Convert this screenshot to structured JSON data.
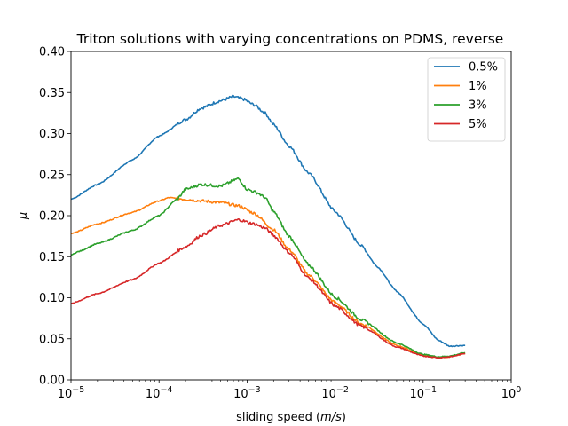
{
  "chart_data": {
    "type": "line",
    "title": "Triton solutions with varying concentrations on PDMS, reverse",
    "xlabel_prefix": "sliding speed (",
    "xlabel_unit": "m/s",
    "xlabel_suffix": ")",
    "ylabel": "μ",
    "xscale": "log",
    "xlim": [
      1e-05,
      1
    ],
    "ylim": [
      0,
      0.4
    ],
    "xticks": [
      {
        "value": 1e-05,
        "base": "10",
        "exp": "−5"
      },
      {
        "value": 0.0001,
        "base": "10",
        "exp": "−4"
      },
      {
        "value": 0.001,
        "base": "10",
        "exp": "−3"
      },
      {
        "value": 0.01,
        "base": "10",
        "exp": "−2"
      },
      {
        "value": 0.1,
        "base": "10",
        "exp": "−1"
      },
      {
        "value": 1,
        "base": "10",
        "exp": "0"
      }
    ],
    "yticks": [
      {
        "value": 0.0,
        "label": "0.00"
      },
      {
        "value": 0.05,
        "label": "0.05"
      },
      {
        "value": 0.1,
        "label": "0.10"
      },
      {
        "value": 0.15,
        "label": "0.15"
      },
      {
        "value": 0.2,
        "label": "0.20"
      },
      {
        "value": 0.25,
        "label": "0.25"
      },
      {
        "value": 0.3,
        "label": "0.30"
      },
      {
        "value": 0.35,
        "label": "0.35"
      },
      {
        "value": 0.4,
        "label": "0.40"
      }
    ],
    "grid": false,
    "legend": "top-right",
    "series": [
      {
        "name": "0.5%",
        "color": "#1f77b4",
        "x": [
          1e-05,
          2e-05,
          5e-05,
          0.0001,
          0.0002,
          0.0003,
          0.0005,
          0.0007,
          0.0009,
          0.0012,
          0.0016,
          0.002,
          0.003,
          0.005,
          0.01,
          0.02,
          0.03,
          0.05,
          0.1,
          0.15,
          0.2,
          0.3
        ],
        "y": [
          0.22,
          0.238,
          0.268,
          0.297,
          0.317,
          0.331,
          0.34,
          0.345,
          0.342,
          0.335,
          0.325,
          0.311,
          0.285,
          0.252,
          0.205,
          0.163,
          0.138,
          0.108,
          0.068,
          0.048,
          0.041,
          0.042
        ]
      },
      {
        "name": "1%",
        "color": "#ff7f0e",
        "x": [
          1e-05,
          2e-05,
          5e-05,
          0.0001,
          0.00013,
          0.00016,
          0.0002,
          0.0003,
          0.0005,
          0.0008,
          0.0012,
          0.002,
          0.003,
          0.005,
          0.01,
          0.02,
          0.05,
          0.1,
          0.15,
          0.2,
          0.3
        ],
        "y": [
          0.178,
          0.19,
          0.204,
          0.218,
          0.222,
          0.221,
          0.22,
          0.218,
          0.216,
          0.212,
          0.203,
          0.183,
          0.159,
          0.128,
          0.094,
          0.068,
          0.042,
          0.03,
          0.027,
          0.028,
          0.032
        ]
      },
      {
        "name": "3%",
        "color": "#2ca02c",
        "x": [
          1e-05,
          1.2e-05,
          2e-05,
          5e-05,
          0.0001,
          0.00016,
          0.0002,
          0.0003,
          0.0005,
          0.0008,
          0.001,
          0.0013,
          0.0016,
          0.002,
          0.003,
          0.005,
          0.01,
          0.02,
          0.05,
          0.1,
          0.15,
          0.2,
          0.3
        ],
        "y": [
          0.152,
          0.156,
          0.166,
          0.182,
          0.2,
          0.22,
          0.232,
          0.238,
          0.236,
          0.245,
          0.232,
          0.228,
          0.222,
          0.205,
          0.175,
          0.14,
          0.101,
          0.073,
          0.045,
          0.031,
          0.028,
          0.029,
          0.033
        ]
      },
      {
        "name": "5%",
        "color": "#d62728",
        "x": [
          1e-05,
          2e-05,
          5e-05,
          0.0001,
          0.0002,
          0.0003,
          0.0005,
          0.0008,
          0.0012,
          0.0016,
          0.002,
          0.003,
          0.005,
          0.01,
          0.02,
          0.05,
          0.1,
          0.15,
          0.2,
          0.3
        ],
        "y": [
          0.093,
          0.105,
          0.122,
          0.142,
          0.162,
          0.176,
          0.188,
          0.195,
          0.19,
          0.185,
          0.176,
          0.155,
          0.124,
          0.09,
          0.065,
          0.04,
          0.029,
          0.027,
          0.028,
          0.032
        ]
      }
    ]
  }
}
